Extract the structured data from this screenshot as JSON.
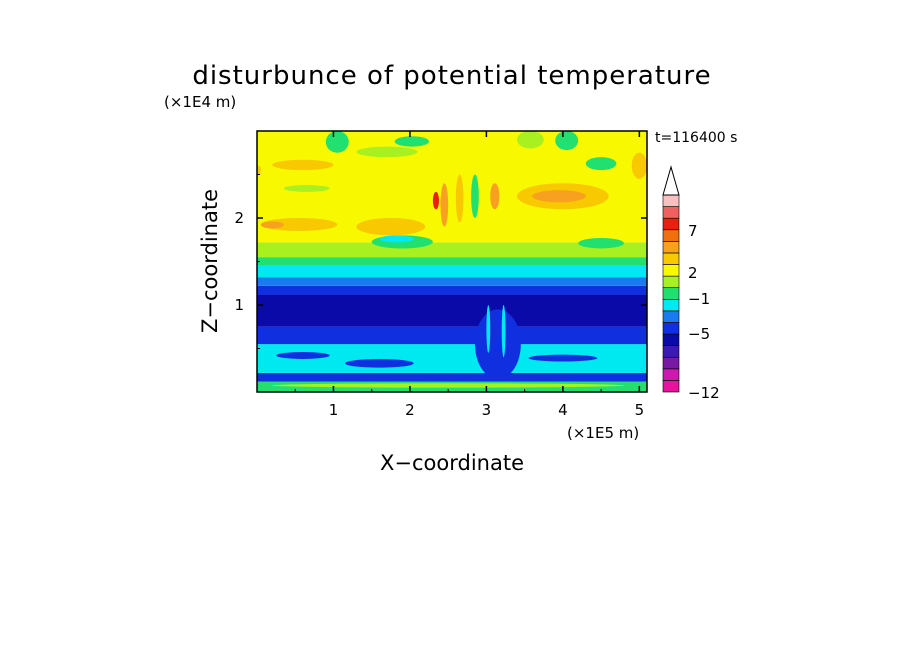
{
  "chart_data": {
    "type": "heatmap",
    "title": "disturbunce of potential temperature",
    "time_label": "t=116400 s",
    "xlabel": "X−coordinate",
    "ylabel": "Z−coordinate",
    "x_scale_label": "(×1E5 m)",
    "y_scale_label": "(×1E4 m)",
    "xlim": [
      0,
      5.1
    ],
    "ylim": [
      0,
      3.0
    ],
    "x_ticks": [
      {
        "value": 1,
        "label": "1"
      },
      {
        "value": 2,
        "label": "2"
      },
      {
        "value": 3,
        "label": "3"
      },
      {
        "value": 4,
        "label": "4"
      },
      {
        "value": 5,
        "label": "5"
      }
    ],
    "y_ticks": [
      {
        "value": 1,
        "label": "1"
      },
      {
        "value": 2,
        "label": "2"
      }
    ],
    "colorbar": {
      "colors": [
        "#e8129e",
        "#cc1ab0",
        "#7a18a6",
        "#3a1ab0",
        "#0a0aa8",
        "#1030e0",
        "#1a7af0",
        "#00e8f0",
        "#22e070",
        "#a8f020",
        "#f8f800",
        "#f8c800",
        "#f8a020",
        "#f07010",
        "#e82010",
        "#f06060",
        "#f8c0c0"
      ],
      "arrow_color": "#ffffff",
      "labels": [
        {
          "value": 7,
          "label": "7"
        },
        {
          "value": 2,
          "label": "2"
        },
        {
          "value": -1,
          "label": "−1"
        },
        {
          "value": -5,
          "label": "−5"
        },
        {
          "value": -12,
          "label": "−12"
        }
      ]
    },
    "bands": [
      {
        "z0": 0.0,
        "z1": 0.12,
        "color": "#22e070"
      },
      {
        "z0": 0.12,
        "z1": 0.22,
        "color": "#1030e0"
      },
      {
        "z0": 0.22,
        "z1": 0.55,
        "color": "#00e8f0"
      },
      {
        "z0": 0.55,
        "z1": 0.75,
        "color": "#1030e0"
      },
      {
        "z0": 0.75,
        "z1": 1.12,
        "color": "#0a0aa8"
      },
      {
        "z0": 1.12,
        "z1": 1.22,
        "color": "#1030e0"
      },
      {
        "z0": 1.22,
        "z1": 1.32,
        "color": "#1a7af0"
      },
      {
        "z0": 1.32,
        "z1": 1.45,
        "color": "#00e8f0"
      },
      {
        "z0": 1.45,
        "z1": 1.55,
        "color": "#22e070"
      },
      {
        "z0": 1.55,
        "z1": 1.72,
        "color": "#a8f020"
      },
      {
        "z0": 1.72,
        "z1": 3.0,
        "color": "#f8f800"
      }
    ],
    "patches": [
      {
        "x": 0.05,
        "z": 1.85,
        "w": 1.0,
        "h": 0.15,
        "color": "#f8c800"
      },
      {
        "x": 0.05,
        "z": 1.88,
        "w": 0.3,
        "h": 0.08,
        "color": "#f8a020"
      },
      {
        "x": 1.3,
        "z": 1.8,
        "w": 0.9,
        "h": 0.2,
        "color": "#f8c800"
      },
      {
        "x": 3.4,
        "z": 2.1,
        "w": 1.2,
        "h": 0.3,
        "color": "#f8c800"
      },
      {
        "x": 3.6,
        "z": 2.18,
        "w": 0.7,
        "h": 0.14,
        "color": "#f8a020"
      },
      {
        "x": 0.2,
        "z": 2.55,
        "w": 0.8,
        "h": 0.12,
        "color": "#f8c800"
      },
      {
        "x": 4.9,
        "z": 2.45,
        "w": 0.2,
        "h": 0.3,
        "color": "#f8c800"
      },
      {
        "x": 0.0,
        "z": 2.5,
        "w": 0.05,
        "h": 0.1,
        "color": "#f8c800"
      },
      {
        "x": 0.35,
        "z": 2.3,
        "w": 0.6,
        "h": 0.08,
        "color": "#a8f020"
      },
      {
        "x": 0.9,
        "z": 2.75,
        "w": 0.3,
        "h": 0.25,
        "color": "#22e070"
      },
      {
        "x": 1.3,
        "z": 2.7,
        "w": 0.8,
        "h": 0.12,
        "color": "#a8f020"
      },
      {
        "x": 1.8,
        "z": 2.82,
        "w": 0.45,
        "h": 0.12,
        "color": "#22e070"
      },
      {
        "x": 3.4,
        "z": 2.8,
        "w": 0.35,
        "h": 0.2,
        "color": "#a8f020"
      },
      {
        "x": 3.9,
        "z": 2.78,
        "w": 0.3,
        "h": 0.22,
        "color": "#22e070"
      },
      {
        "x": 4.3,
        "z": 2.55,
        "w": 0.4,
        "h": 0.15,
        "color": "#22e070"
      },
      {
        "x": 1.5,
        "z": 1.65,
        "w": 0.8,
        "h": 0.15,
        "color": "#22e070"
      },
      {
        "x": 1.6,
        "z": 1.72,
        "w": 0.45,
        "h": 0.08,
        "color": "#00e8f0"
      },
      {
        "x": 4.2,
        "z": 1.65,
        "w": 0.6,
        "h": 0.12,
        "color": "#22e070"
      },
      {
        "x": 2.4,
        "z": 1.9,
        "w": 0.1,
        "h": 0.5,
        "color": "#f8a020"
      },
      {
        "x": 2.6,
        "z": 1.95,
        "w": 0.1,
        "h": 0.55,
        "color": "#f8c800"
      },
      {
        "x": 2.8,
        "z": 2.0,
        "w": 0.1,
        "h": 0.5,
        "color": "#22e070"
      },
      {
        "x": 3.05,
        "z": 2.1,
        "w": 0.12,
        "h": 0.3,
        "color": "#f8a020"
      },
      {
        "x": 2.3,
        "z": 2.1,
        "w": 0.08,
        "h": 0.2,
        "color": "#e82010"
      },
      {
        "x": 0.1,
        "z": 0.9,
        "w": 0.6,
        "h": 0.1,
        "color": "#0a0aa8"
      },
      {
        "x": 0.25,
        "z": 0.38,
        "w": 0.7,
        "h": 0.08,
        "color": "#1030e0"
      },
      {
        "x": 1.15,
        "z": 0.28,
        "w": 0.9,
        "h": 0.1,
        "color": "#1030e0"
      },
      {
        "x": 3.55,
        "z": 0.35,
        "w": 0.9,
        "h": 0.08,
        "color": "#1030e0"
      },
      {
        "x": 2.85,
        "z": 0.15,
        "w": 0.6,
        "h": 0.8,
        "color": "#1030e0"
      },
      {
        "x": 3.0,
        "z": 0.45,
        "w": 0.05,
        "h": 0.55,
        "color": "#00e8f0"
      },
      {
        "x": 3.2,
        "z": 0.4,
        "w": 0.05,
        "h": 0.6,
        "color": "#00e8f0"
      },
      {
        "x": 0.2,
        "z": 0.05,
        "w": 4.6,
        "h": 0.05,
        "color": "#a8f020"
      }
    ]
  }
}
